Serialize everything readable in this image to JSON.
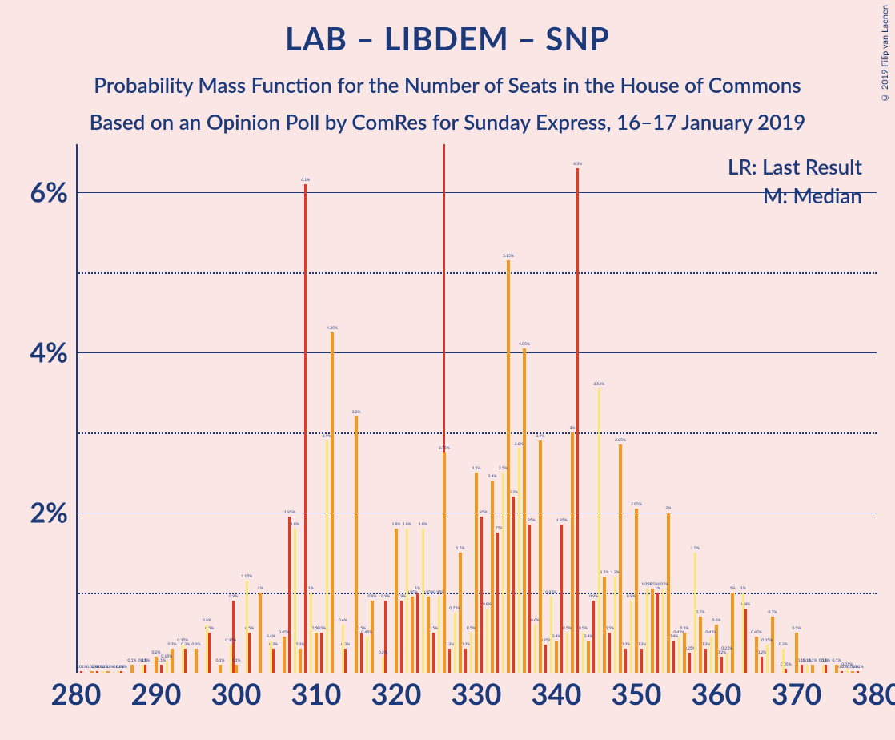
{
  "title": "LAB – LIBDEM – SNP",
  "subtitle1": "Probability Mass Function for the Number of Seats in the House of Commons",
  "subtitle2": "Based on an Opinion Poll by ComRes for Sunday Express, 16–17 January 2019",
  "legend_lr": "LR: Last Result",
  "legend_m": "M: Median",
  "copyright": "© 2019 Filip van Laenen",
  "chart": {
    "type": "bar",
    "background_color": "#fbe6e6",
    "text_color": "#1c3a7a",
    "axis_color": "#1c3a7a",
    "grid_color": "#1c3a7a",
    "x_min": 280,
    "x_max": 380,
    "x_tick_step": 10,
    "y_min": 0,
    "y_max": 6.5,
    "y_ticks_major": [
      2,
      4,
      6
    ],
    "y_ticks_minor": [
      1,
      3,
      5
    ],
    "y_tick_format": "{v}%",
    "median_x": 326,
    "median_color": "#e03020",
    "series": [
      {
        "name": "red",
        "color": "#e43a1f",
        "offset": 0,
        "data": {
          "281": 0.02,
          "283": 0.02,
          "286": 0.02,
          "289": 0.1,
          "291": 0.1,
          "294": 0.3,
          "297": 0.5,
          "300": 0.9,
          "302": 0.5,
          "305": 0.3,
          "307": 1.95,
          "309": 6.1,
          "311": 0.5,
          "314": 0.3,
          "316": 0.5,
          "319": 0.9,
          "321": 0.9,
          "323": 1.0,
          "325": 0.5,
          "327": 0.3,
          "329": 0.3,
          "331": 1.95,
          "333": 1.75,
          "335": 2.2,
          "337": 1.85,
          "339": 0.35,
          "341": 1.85,
          "343": 6.3,
          "345": 0.9,
          "347": 0.5,
          "349": 0.3,
          "351": 0.3,
          "353": 1.0,
          "355": 0.4,
          "357": 0.25,
          "359": 0.3,
          "361": 0.2,
          "364": 0.8,
          "366": 0.2,
          "369": 0.05,
          "371": 0.1,
          "374": 0.1,
          "376": 0.02,
          "378": 0.02
        }
      },
      {
        "name": "orange",
        "color": "#f29a1f",
        "offset": 1,
        "data": {
          "282": 0.02,
          "284": 0.02,
          "287": 0.1,
          "290": 0.2,
          "292": 0.3,
          "295": 0.3,
          "298": 0.1,
          "300": 0.1,
          "303": 1.0,
          "306": 0.45,
          "308": 0.3,
          "310": 0.5,
          "312": 4.25,
          "315": 3.2,
          "317": 0.9,
          "320": 1.8,
          "322": 0.95,
          "324": 0.95,
          "326": 2.75,
          "328": 1.5,
          "330": 2.5,
          "332": 2.4,
          "334": 5.15,
          "336": 4.05,
          "338": 2.9,
          "340": 0.4,
          "342": 3.0,
          "344": 0.4,
          "346": 1.2,
          "348": 2.85,
          "350": 2.05,
          "352": 1.05,
          "354": 2.0,
          "356": 0.5,
          "358": 0.7,
          "360": 0.6,
          "362": 1.0,
          "365": 0.45,
          "367": 0.7,
          "370": 0.5,
          "372": 0.1,
          "375": 0.1,
          "377": 0.02
        }
      },
      {
        "name": "yellow",
        "color": "#f8e77a",
        "offset": 2,
        "data": {
          "283": 0.02,
          "285": 0.02,
          "288": 0.1,
          "291": 0.15,
          "293": 0.35,
          "296": 0.6,
          "299": 0.35,
          "301": 1.15,
          "304": 0.4,
          "307": 1.8,
          "309": 1.0,
          "311": 2.9,
          "313": 0.6,
          "316": 0.45,
          "318": 0.2,
          "321": 1.8,
          "323": 1.8,
          "325": 0.95,
          "327": 0.75,
          "329": 0.5,
          "331": 0.8,
          "333": 2.5,
          "335": 2.8,
          "337": 0.6,
          "339": 0.95,
          "341": 0.5,
          "343": 0.5,
          "345": 3.55,
          "347": 1.2,
          "349": 0.9,
          "351": 1.05,
          "353": 1.05,
          "355": 0.45,
          "357": 1.5,
          "359": 0.45,
          "361": 0.25,
          "363": 1.0,
          "366": 0.35,
          "368": 0.3,
          "371": 0.1,
          "373": 0.1,
          "376": 0.05
        }
      }
    ],
    "bar_width_units": 0.33,
    "title_fontsize": 40,
    "subtitle_fontsize": 26,
    "axis_label_fontsize": 34
  }
}
